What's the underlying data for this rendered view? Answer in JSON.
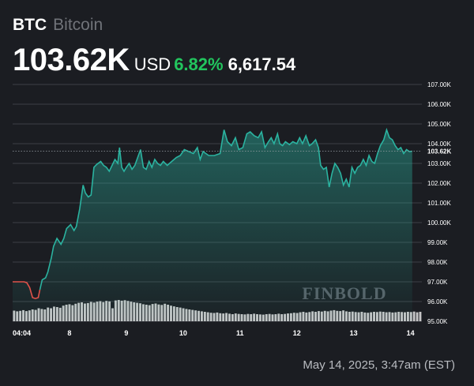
{
  "header": {
    "symbol": "BTC",
    "name": "Bitcoin",
    "price": "103.62K",
    "currency": "USD",
    "change_pct": "6.82%",
    "change_abs": "6,617.54"
  },
  "footer": {
    "timestamp": "May 14, 2025, 3:47am (EST)"
  },
  "watermark": "FINBOLD",
  "colors": {
    "up": "#2bb3a0",
    "down": "#e0524a",
    "change": "#22c55e",
    "background": "#1b1d22",
    "volume": "#d9d9d9"
  },
  "chart_data": {
    "type": "area",
    "title": "",
    "xlabel": "",
    "ylabel": "",
    "ylim": [
      95.0,
      107.0
    ],
    "y_unit": "K",
    "y_ticks": [
      "107.00K",
      "106.00K",
      "105.00K",
      "104.00K",
      "103.00K",
      "102.00K",
      "101.00K",
      "100.00K",
      "99.00K",
      "98.00K",
      "97.00K",
      "96.00K",
      "95.00K"
    ],
    "x_ticks": [
      {
        "label": "04:04",
        "day": 7.02
      },
      {
        "label": "8",
        "day": 8.0
      },
      {
        "label": "9",
        "day": 9.0
      },
      {
        "label": "10",
        "day": 10.0
      },
      {
        "label": "11",
        "day": 11.0
      },
      {
        "label": "12",
        "day": 12.0
      },
      {
        "label": "13",
        "day": 13.0
      },
      {
        "label": "14",
        "day": 14.0
      }
    ],
    "x_domain": [
      7.0,
      14.2
    ],
    "current_label": "103.62K",
    "current_value": 103.62,
    "series": [
      {
        "values": [
          [
            7.0,
            97.0
          ],
          [
            7.1,
            97.0
          ],
          [
            7.2,
            97.0
          ],
          [
            7.25,
            96.95
          ],
          [
            7.3,
            96.7
          ],
          [
            7.35,
            96.2
          ],
          [
            7.4,
            96.15
          ],
          [
            7.45,
            96.2
          ],
          [
            7.48,
            96.6
          ],
          [
            7.52,
            97.1
          ],
          [
            7.58,
            97.2
          ],
          [
            7.62,
            97.5
          ],
          [
            7.68,
            98.2
          ],
          [
            7.72,
            98.8
          ],
          [
            7.78,
            99.2
          ],
          [
            7.85,
            98.9
          ],
          [
            7.9,
            99.2
          ],
          [
            7.95,
            99.7
          ],
          [
            8.02,
            99.9
          ],
          [
            8.08,
            99.6
          ],
          [
            8.12,
            99.8
          ],
          [
            8.18,
            100.7
          ],
          [
            8.24,
            101.9
          ],
          [
            8.28,
            101.5
          ],
          [
            8.33,
            101.3
          ],
          [
            8.38,
            101.4
          ],
          [
            8.43,
            102.8
          ],
          [
            8.48,
            102.95
          ],
          [
            8.55,
            103.1
          ],
          [
            8.6,
            102.9
          ],
          [
            8.65,
            102.8
          ],
          [
            8.7,
            102.6
          ],
          [
            8.75,
            102.9
          ],
          [
            8.8,
            103.2
          ],
          [
            8.85,
            103.0
          ],
          [
            8.88,
            103.8
          ],
          [
            8.92,
            102.8
          ],
          [
            8.96,
            102.6
          ],
          [
            9.0,
            102.8
          ],
          [
            9.05,
            103.0
          ],
          [
            9.1,
            102.7
          ],
          [
            9.15,
            102.9
          ],
          [
            9.2,
            103.3
          ],
          [
            9.25,
            103.7
          ],
          [
            9.3,
            102.8
          ],
          [
            9.35,
            102.7
          ],
          [
            9.4,
            103.1
          ],
          [
            9.45,
            102.8
          ],
          [
            9.5,
            103.2
          ],
          [
            9.55,
            103.0
          ],
          [
            9.6,
            102.9
          ],
          [
            9.65,
            103.1
          ],
          [
            9.72,
            102.9
          ],
          [
            9.8,
            103.1
          ],
          [
            9.88,
            103.3
          ],
          [
            9.95,
            103.4
          ],
          [
            10.02,
            103.7
          ],
          [
            10.1,
            103.6
          ],
          [
            10.18,
            103.5
          ],
          [
            10.25,
            103.8
          ],
          [
            10.3,
            103.2
          ],
          [
            10.35,
            103.6
          ],
          [
            10.45,
            103.4
          ],
          [
            10.55,
            103.4
          ],
          [
            10.65,
            103.5
          ],
          [
            10.72,
            104.7
          ],
          [
            10.78,
            104.1
          ],
          [
            10.85,
            103.9
          ],
          [
            10.92,
            104.3
          ],
          [
            10.98,
            103.7
          ],
          [
            11.05,
            103.8
          ],
          [
            11.12,
            104.5
          ],
          [
            11.18,
            104.6
          ],
          [
            11.25,
            104.4
          ],
          [
            11.32,
            104.3
          ],
          [
            11.38,
            104.6
          ],
          [
            11.44,
            103.8
          ],
          [
            11.5,
            104.1
          ],
          [
            11.55,
            104.3
          ],
          [
            11.6,
            104.0
          ],
          [
            11.66,
            104.5
          ],
          [
            11.7,
            104.0
          ],
          [
            11.75,
            103.9
          ],
          [
            11.8,
            104.1
          ],
          [
            11.87,
            103.95
          ],
          [
            11.93,
            104.1
          ],
          [
            12.0,
            104.0
          ],
          [
            12.05,
            104.3
          ],
          [
            12.1,
            104.0
          ],
          [
            12.16,
            104.4
          ],
          [
            12.22,
            103.9
          ],
          [
            12.27,
            104.0
          ],
          [
            12.33,
            104.2
          ],
          [
            12.38,
            103.8
          ],
          [
            12.42,
            102.9
          ],
          [
            12.47,
            102.7
          ],
          [
            12.52,
            102.8
          ],
          [
            12.57,
            101.8
          ],
          [
            12.62,
            102.5
          ],
          [
            12.67,
            103.0
          ],
          [
            12.72,
            102.8
          ],
          [
            12.77,
            102.5
          ],
          [
            12.82,
            101.9
          ],
          [
            12.87,
            102.2
          ],
          [
            12.92,
            101.8
          ],
          [
            12.97,
            102.8
          ],
          [
            13.02,
            102.5
          ],
          [
            13.07,
            102.8
          ],
          [
            13.12,
            102.9
          ],
          [
            13.17,
            103.2
          ],
          [
            13.22,
            102.9
          ],
          [
            13.27,
            103.4
          ],
          [
            13.32,
            103.1
          ],
          [
            13.37,
            103.0
          ],
          [
            13.42,
            103.5
          ],
          [
            13.47,
            103.9
          ],
          [
            13.53,
            104.2
          ],
          [
            13.58,
            104.7
          ],
          [
            13.63,
            104.3
          ],
          [
            13.68,
            104.2
          ],
          [
            13.73,
            103.9
          ],
          [
            13.78,
            103.7
          ],
          [
            13.83,
            103.8
          ],
          [
            13.88,
            103.5
          ],
          [
            13.93,
            103.7
          ],
          [
            13.98,
            103.6
          ],
          [
            14.03,
            103.62
          ]
        ],
        "down_until_day": 7.48
      }
    ],
    "volume": [
      0.45,
      0.42,
      0.44,
      0.47,
      0.43,
      0.46,
      0.5,
      0.48,
      0.55,
      0.52,
      0.5,
      0.58,
      0.55,
      0.62,
      0.6,
      0.57,
      0.66,
      0.7,
      0.72,
      0.68,
      0.74,
      0.78,
      0.8,
      0.75,
      0.77,
      0.82,
      0.79,
      0.83,
      0.85,
      0.81,
      0.86,
      0.84,
      0.55,
      0.88,
      0.9,
      0.87,
      0.89,
      0.86,
      0.83,
      0.8,
      0.78,
      0.76,
      0.72,
      0.7,
      0.68,
      0.73,
      0.75,
      0.71,
      0.69,
      0.74,
      0.7,
      0.66,
      0.63,
      0.6,
      0.58,
      0.55,
      0.52,
      0.5,
      0.48,
      0.46,
      0.44,
      0.42,
      0.4,
      0.38,
      0.36,
      0.35,
      0.37,
      0.34,
      0.33,
      0.35,
      0.32,
      0.3,
      0.33,
      0.31,
      0.3,
      0.29,
      0.31,
      0.3,
      0.32,
      0.3,
      0.29,
      0.28,
      0.3,
      0.31,
      0.29,
      0.3,
      0.32,
      0.3,
      0.31,
      0.33,
      0.34,
      0.36,
      0.35,
      0.38,
      0.4,
      0.37,
      0.39,
      0.42,
      0.4,
      0.43,
      0.41,
      0.44,
      0.42,
      0.45,
      0.47,
      0.44,
      0.43,
      0.46,
      0.42,
      0.4,
      0.41,
      0.39,
      0.38,
      0.4,
      0.37,
      0.36,
      0.38,
      0.4,
      0.39,
      0.41,
      0.4,
      0.38,
      0.39,
      0.37,
      0.38,
      0.4,
      0.39,
      0.38,
      0.4,
      0.39,
      0.41,
      0.38,
      0.4
    ]
  }
}
